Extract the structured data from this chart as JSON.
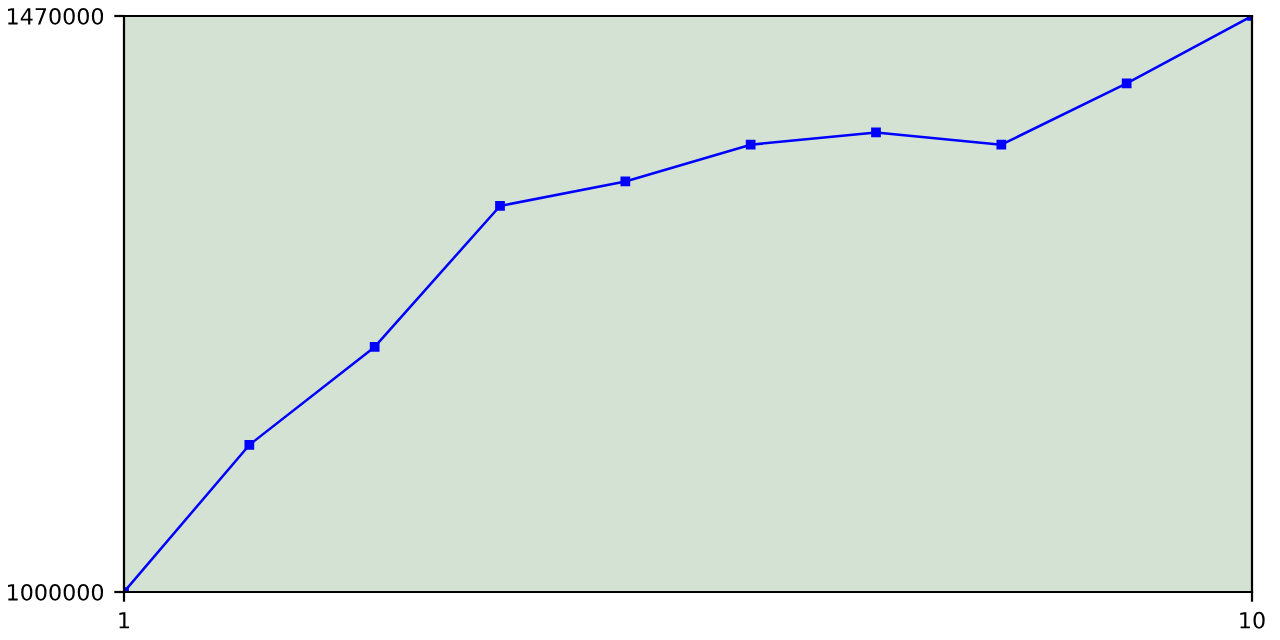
{
  "chart_data": {
    "type": "line",
    "x": [
      1,
      2,
      3,
      4,
      5,
      6,
      7,
      8,
      9,
      10
    ],
    "series": [
      {
        "color": "#0000ff",
        "values": [
          1000000,
          1120000,
          1200000,
          1315000,
          1335000,
          1365000,
          1375000,
          1365000,
          1415000,
          1470000
        ]
      }
    ],
    "xlim": [
      1,
      10
    ],
    "ylim": [
      1000000,
      1470000
    ],
    "xticks": [
      1,
      10
    ],
    "yticks": [
      1000000,
      1470000
    ],
    "grid": false,
    "legend": false,
    "marker": "square",
    "line_style": "solid"
  }
}
